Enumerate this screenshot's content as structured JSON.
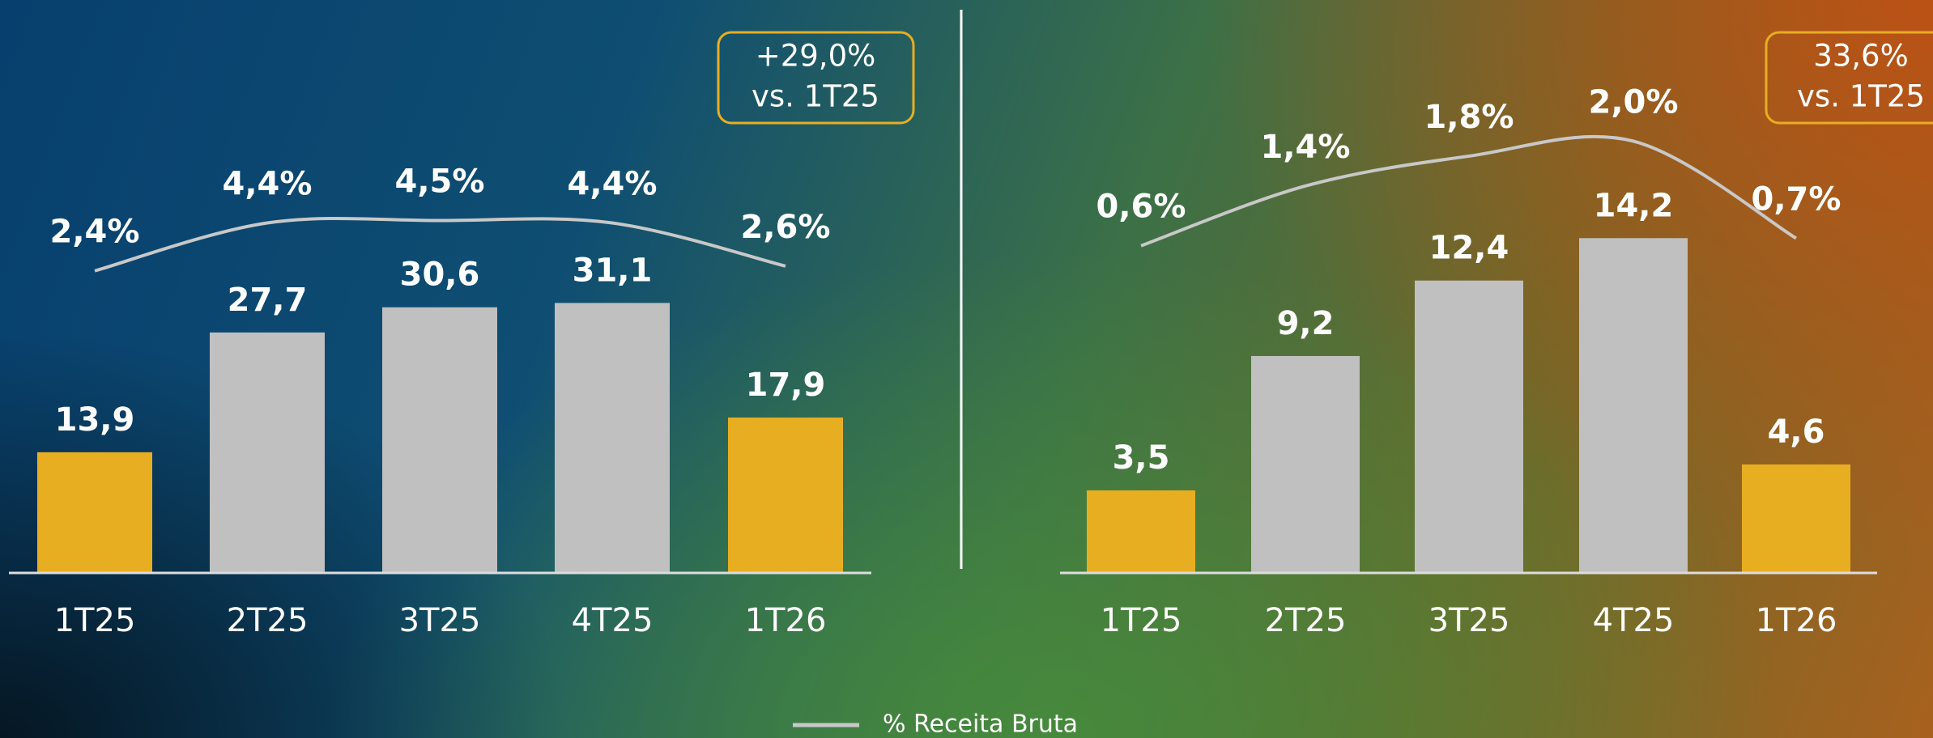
{
  "chart_data": [
    {
      "type": "bar",
      "categories": [
        "1T25",
        "2T25",
        "3T25",
        "4T25",
        "1T26"
      ],
      "ylim": [
        0,
        66
      ],
      "y2lim": [
        -10.2,
        13.7
      ],
      "annotation": [
        "+29,0%",
        "vs. 1T25"
      ],
      "series": [
        {
          "type": "bar",
          "colors": [
            "#e8ae22",
            "#c0c0c0",
            "#c0c0c0",
            "#c0c0c0",
            "#e8ae22"
          ],
          "values": [
            13.9,
            27.7,
            30.6,
            31.1,
            17.9
          ],
          "value_labels": [
            "13,9",
            "27,7",
            "30,6",
            "31,1",
            "17,9"
          ]
        },
        {
          "type": "line",
          "name": "% Receita Bruta",
          "axis": "y2",
          "color": "#c8c8c8",
          "values": [
            2.4,
            4.4,
            4.5,
            4.4,
            2.6
          ],
          "value_labels": [
            "2,4%",
            "4,4%",
            "4,5%",
            "4,4%",
            "2,6%"
          ]
        }
      ]
    },
    {
      "type": "bar",
      "categories": [
        "1T25",
        "2T25",
        "3T25",
        "4T25",
        "1T26"
      ],
      "ylim": [
        0,
        24.3
      ],
      "y2lim": [
        -3.78,
        3.89
      ],
      "annotation": [
        "33,6%",
        "vs. 1T25"
      ],
      "series": [
        {
          "type": "bar",
          "colors": [
            "#e8ae22",
            "#c0c0c0",
            "#c0c0c0",
            "#c0c0c0",
            "#e8ae22"
          ],
          "values": [
            3.5,
            9.2,
            12.4,
            14.2,
            4.6
          ],
          "value_labels": [
            "3,5",
            "9,2",
            "12,4",
            "14,2",
            "4,6"
          ]
        },
        {
          "type": "line",
          "axis": "y2",
          "color": "#c8c8c8",
          "values": [
            0.6,
            1.4,
            1.8,
            2.0,
            0.7
          ],
          "value_labels": [
            "0,6%",
            "1,4%",
            "1,8%",
            "2,0%",
            "0,7%"
          ]
        }
      ]
    }
  ]
}
